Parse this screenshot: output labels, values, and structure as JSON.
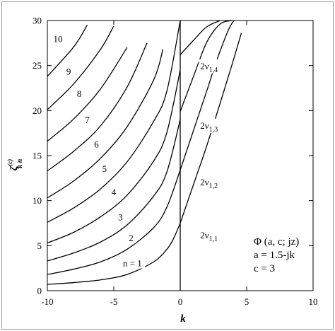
{
  "chart_data": {
    "type": "line",
    "title": "",
    "xlabel": "k",
    "ylabel": "ζ(c) k n",
    "ylabel_parts": {
      "base": "ζ",
      "sup": "(c)",
      "sub": "k n"
    },
    "xlim": [
      -10,
      10
    ],
    "ylim": [
      0,
      30
    ],
    "x_ticks": [
      -10,
      -5,
      0,
      5,
      10
    ],
    "y_ticks": [
      0,
      5,
      10,
      15,
      20,
      25,
      30
    ],
    "grid": false,
    "legend": "none",
    "line_color": "#000000",
    "series": [
      {
        "label": "n = 1",
        "x": [
          -10,
          -8,
          -6,
          -4,
          -2,
          -1,
          -0.5,
          0
        ],
        "y": [
          0.7,
          0.9,
          1.2,
          1.8,
          3.2,
          4.6,
          5.8,
          7.5
        ]
      },
      {
        "label": "2",
        "x": [
          -10,
          -8,
          -6,
          -4,
          -2,
          -1,
          0
        ],
        "y": [
          1.8,
          2.4,
          3.2,
          4.6,
          7.0,
          9.3,
          13.4
        ]
      },
      {
        "label": "3",
        "x": [
          -10,
          -8,
          -6,
          -4,
          -2,
          -1,
          0
        ],
        "y": [
          3.3,
          4.2,
          5.4,
          7.3,
          10.5,
          13.2,
          19.0
        ]
      },
      {
        "label": "4",
        "x": [
          -10,
          -8,
          -6,
          -4,
          -2,
          -1,
          0
        ],
        "y": [
          5.3,
          6.5,
          8.2,
          10.6,
          14.4,
          17.6,
          24.5
        ]
      },
      {
        "label": "5",
        "x": [
          -10,
          -8,
          -6,
          -4,
          -2,
          -1,
          0
        ],
        "y": [
          7.6,
          9.2,
          11.3,
          14.3,
          18.8,
          22.2,
          30.0
        ]
      },
      {
        "label": "6",
        "x": [
          -10,
          -8,
          -6,
          -4,
          -2,
          -1.3
        ],
        "y": [
          10.3,
          12.2,
          14.7,
          18.2,
          23.4,
          26.8
        ]
      },
      {
        "label": "7",
        "x": [
          -10,
          -8,
          -6,
          -4,
          -2.5
        ],
        "y": [
          13.3,
          15.5,
          18.3,
          22.6,
          27.5
        ]
      },
      {
        "label": "8",
        "x": [
          -10,
          -8,
          -6,
          -4
        ],
        "y": [
          16.6,
          19.1,
          22.4,
          27.0
        ]
      },
      {
        "label": "9",
        "x": [
          -10,
          -8,
          -6,
          -5
        ],
        "y": [
          20.1,
          23.0,
          26.8,
          29.4
        ]
      },
      {
        "label": "10",
        "x": [
          -10,
          -8,
          -7
        ],
        "y": [
          23.8,
          27.1,
          29.5
        ]
      },
      {
        "label": "2ν1,1",
        "x": [
          0,
          1,
          2,
          3,
          4,
          4.6
        ],
        "y": [
          7.5,
          11.8,
          16.1,
          20.8,
          25.6,
          28.6
        ]
      },
      {
        "label": "2ν1,2",
        "x": [
          0,
          1,
          2,
          3,
          4,
          5
        ],
        "y": [
          13.4,
          17.8,
          22.2,
          26.6,
          29.9,
          30.0
        ]
      },
      {
        "label": "2ν1,3",
        "x": [
          0,
          1,
          2,
          3,
          3.9
        ],
        "y": [
          19.9,
          23.8,
          27.6,
          29.6,
          30.0
        ]
      },
      {
        "label": "2ν1,4",
        "x": [
          0,
          1,
          2,
          3
        ],
        "y": [
          26.2,
          27.8,
          29.3,
          30.0
        ]
      },
      {
        "label": "k = 0",
        "x": [
          0,
          0
        ],
        "y": [
          0,
          30
        ]
      }
    ],
    "curve_labels": [
      {
        "text": "n = 1",
        "x": -3.6,
        "y": 2.7
      },
      {
        "text": "2",
        "x": -3.7,
        "y": 5.5
      },
      {
        "text": "3",
        "x": -4.5,
        "y": 7.8
      },
      {
        "text": "4",
        "x": -5.0,
        "y": 10.6
      },
      {
        "text": "5",
        "x": -5.7,
        "y": 13.2
      },
      {
        "text": "6",
        "x": -6.3,
        "y": 15.9
      },
      {
        "text": "7",
        "x": -7.0,
        "y": 18.6
      },
      {
        "text": "8",
        "x": -7.6,
        "y": 21.5
      },
      {
        "text": "9",
        "x": -8.4,
        "y": 24.0
      },
      {
        "text": "10",
        "x": -9.2,
        "y": 27.6
      }
    ],
    "nu_labels": [
      {
        "base": "2ν",
        "sub": "1,1",
        "x": 1.5,
        "y": 5.8
      },
      {
        "base": "2ν",
        "sub": "1,2",
        "x": 1.5,
        "y": 11.7
      },
      {
        "base": "2ν",
        "sub": "1,3",
        "x": 1.5,
        "y": 18.0
      },
      {
        "base": "2ν",
        "sub": "1,4",
        "x": 1.5,
        "y": 24.6
      }
    ],
    "annotations": [
      "Φ (a, c; jz)",
      "a = 1.5-jk",
      "c = 3"
    ]
  }
}
